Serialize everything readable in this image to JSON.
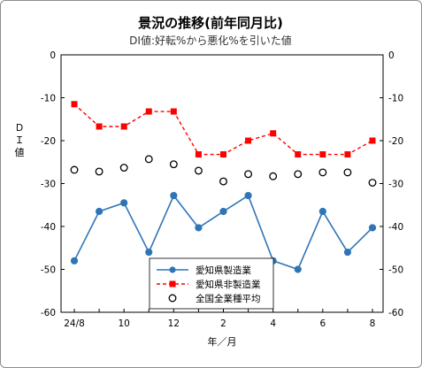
{
  "chart_data": {
    "type": "line",
    "title": "景況の推移(前年同月比)",
    "subtitle": "DI値:好転%から悪化%を引いた値",
    "ylabel": "ＤＩ値",
    "xlabel": "年／月",
    "ylim": [
      -60,
      0
    ],
    "yticks": [
      "0",
      "-10",
      "-20",
      "-30",
      "-40",
      "-50",
      "-60"
    ],
    "y_tick_values": [
      0,
      -10,
      -20,
      -30,
      -40,
      -50,
      -60
    ],
    "x_tick_labels": [
      "24/8",
      "10",
      "12",
      "2",
      "4",
      "6",
      "8"
    ],
    "x_tick_index": [
      0,
      2,
      4,
      6,
      8,
      10,
      12
    ],
    "series": [
      {
        "name": "愛知県製造業",
        "color": "#2e75b6",
        "marker": "circle-filled",
        "values": [
          -48,
          -36.5,
          -34.5,
          -46,
          -32.8,
          -40.3,
          -36.5,
          -32.8,
          -48,
          -50,
          -36.5,
          -46,
          -40.3
        ]
      },
      {
        "name": "愛知県非製造業",
        "color": "#ff0000",
        "marker": "square-filled",
        "dashed": true,
        "values": [
          -11.5,
          -16.7,
          -16.7,
          -13.2,
          -13.2,
          -23.2,
          -23.2,
          -20,
          -18.3,
          -23.2,
          -23.2,
          -23.2,
          -20
        ]
      },
      {
        "name": "全国全業種平均",
        "color": "#000000",
        "marker": "circle-open",
        "values": [
          -26.8,
          -27.2,
          -26.3,
          -24.3,
          -25.5,
          -27,
          -29.5,
          -27.8,
          -28.3,
          -27.8,
          -27.4,
          -27.4,
          -29.8
        ]
      }
    ],
    "legend_position": "bottom-right-inside",
    "grid": false
  }
}
